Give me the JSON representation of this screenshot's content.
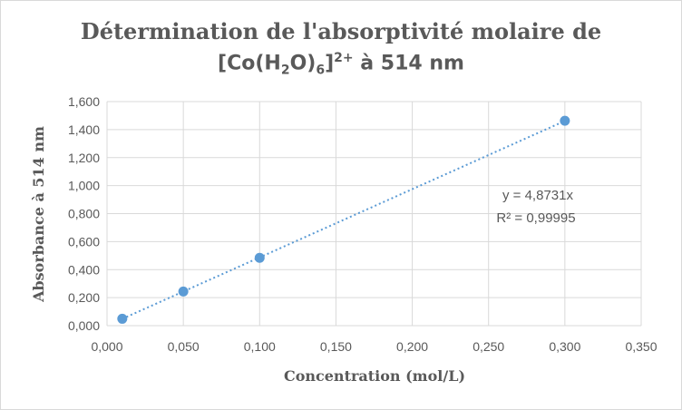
{
  "chart_data": {
    "type": "scatter",
    "title": {
      "line1": "Détermination de l'absorptivité molaire de",
      "line2_prefix": "[Co(H",
      "line2_sub1": "2",
      "line2_mid": "O)",
      "line2_sub2": "6",
      "line2_close": "]",
      "line2_sup": "2+",
      "line2_suffix": " à 514 nm"
    },
    "xlabel": "Concentration (mol/L)",
    "ylabel": "Absorbance à 514 nm",
    "xlim": [
      0,
      0.35
    ],
    "ylim": [
      0,
      1.6
    ],
    "x_ticks": [
      "0,000",
      "0,050",
      "0,100",
      "0,150",
      "0,200",
      "0,250",
      "0,300",
      "0,350"
    ],
    "y_ticks": [
      "0,000",
      "0,200",
      "0,400",
      "0,600",
      "0,800",
      "1,000",
      "1,200",
      "1,400",
      "1,600"
    ],
    "grid": true,
    "series": [
      {
        "x": [
          0.01,
          0.05,
          0.1,
          0.3
        ],
        "y": [
          0.049,
          0.244,
          0.484,
          1.463
        ]
      }
    ],
    "trendline": {
      "type": "linear-through-origin",
      "slope": 4.8731,
      "x_range": [
        0.01,
        0.3
      ],
      "equation": "y = 4,8731x",
      "r_squared": "R² = 0,99995"
    },
    "colors": {
      "marker": "#5b9bd5",
      "trendline": "#5b9bd5",
      "grid": "#d9d9d9",
      "text": "#595959"
    }
  }
}
